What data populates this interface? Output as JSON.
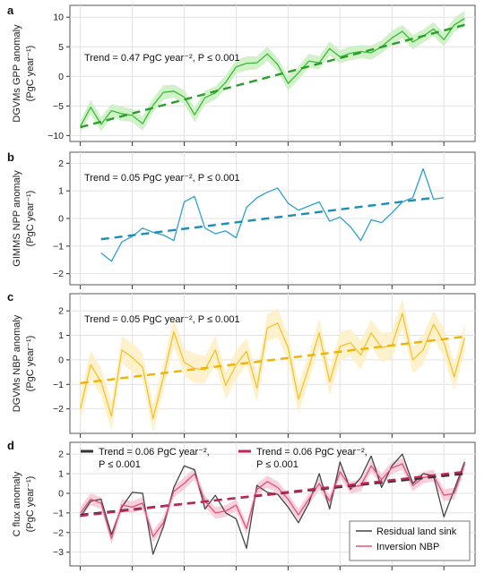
{
  "chart_data": [
    {
      "type": "line",
      "panel": "a",
      "ylabel": [
        "DGVMs GPP anomaly",
        "(PgC year⁻¹)"
      ],
      "ylim": [
        -11,
        12
      ],
      "yticks": [
        -10,
        -5,
        0,
        5,
        10
      ],
      "annotation": "Trend = 0.47 PgC year⁻², P ≤ 0.001",
      "color": "#3cb93c",
      "band_color": "#c9efc0",
      "trend": {
        "x": [
          0,
          37
        ],
        "y": [
          -8.6,
          8.7
        ]
      },
      "x": [
        0,
        1,
        2,
        3,
        4,
        5,
        6,
        7,
        8,
        9,
        10,
        11,
        12,
        13,
        14,
        15,
        16,
        17,
        18,
        19,
        20,
        21,
        22,
        23,
        24,
        25,
        26,
        27,
        28,
        29,
        30,
        31,
        32,
        33,
        34,
        35,
        36,
        37
      ],
      "series": [
        {
          "values": [
            -8.5,
            -5.2,
            -8.1,
            -5.8,
            -6.3,
            -6.6,
            -8.0,
            -4.9,
            -2.7,
            -2.5,
            -3.5,
            -6.5,
            -3.6,
            -2.8,
            -1.0,
            1.6,
            2.2,
            2.3,
            3.8,
            2.0,
            -1.2,
            0.6,
            2.6,
            2.3,
            4.7,
            3.3,
            3.9,
            4.2,
            4.0,
            5.0,
            6.5,
            7.6,
            5.8,
            6.8,
            8.0,
            6.2,
            8.7,
            9.8
          ],
          "band": [
            1.0,
            1.2,
            1.2,
            1.1,
            1.2,
            1.1,
            1.2,
            1.2,
            1.2,
            1.1,
            1.2,
            1.2,
            1.2,
            1.1,
            1.2,
            1.1,
            1.2,
            1.1,
            1.2,
            1.1,
            1.2,
            1.1,
            1.2,
            1.1,
            1.2,
            1.1,
            1.2,
            1.1,
            1.2,
            1.1,
            1.2,
            1.1,
            1.2,
            1.1,
            1.2,
            1.1,
            1.2,
            1.3
          ]
        }
      ]
    },
    {
      "type": "line",
      "panel": "b",
      "ylabel": [
        "GIMMS NPP anomaly",
        "(PgC year⁻¹)"
      ],
      "ylim": [
        -2.4,
        2.4
      ],
      "yticks": [
        -2,
        -1,
        0,
        1,
        2
      ],
      "annotation": "Trend = 0.05 PgC year⁻², P ≤ 0.001",
      "color": "#2ea0cc",
      "trend": {
        "x": [
          2,
          34
        ],
        "y": [
          -0.75,
          0.75
        ]
      },
      "x": [
        2,
        3,
        4,
        5,
        6,
        7,
        8,
        9,
        10,
        11,
        12,
        13,
        14,
        15,
        16,
        17,
        18,
        19,
        20,
        21,
        22,
        23,
        24,
        25,
        26,
        27,
        28,
        29,
        30,
        31,
        32,
        33,
        34,
        35
      ],
      "series": [
        {
          "values": [
            -1.25,
            -1.55,
            -0.85,
            -0.65,
            -0.35,
            -0.5,
            -0.6,
            -0.8,
            0.6,
            0.8,
            -0.35,
            -0.55,
            -0.45,
            -0.7,
            0.4,
            0.75,
            0.95,
            1.1,
            0.55,
            0.3,
            0.45,
            0.6,
            -0.1,
            0.05,
            -0.3,
            -0.8,
            -0.05,
            -0.15,
            0.2,
            0.6,
            0.75,
            1.8,
            0.7,
            0.75
          ]
        }
      ]
    },
    {
      "type": "line",
      "panel": "c",
      "ylabel": [
        "DGVMs NBP anomaly",
        "(PgC year⁻¹)"
      ],
      "ylim": [
        -3,
        2.7
      ],
      "yticks": [
        -2,
        -1,
        0,
        1,
        2
      ],
      "annotation": "Trend = 0.05 PgC year⁻², P ≤ 0.001",
      "color": "#f5c22a",
      "band_color": "#fdf0c4",
      "trend": {
        "x": [
          0,
          37
        ],
        "y": [
          -0.95,
          0.95
        ]
      },
      "x": [
        0,
        1,
        2,
        3,
        4,
        5,
        6,
        7,
        8,
        9,
        10,
        11,
        12,
        13,
        14,
        15,
        16,
        17,
        18,
        19,
        20,
        21,
        22,
        23,
        24,
        25,
        26,
        27,
        28,
        29,
        30,
        31,
        32,
        33,
        34,
        35,
        36,
        37
      ],
      "series": [
        {
          "values": [
            -2.0,
            -0.2,
            -0.9,
            -2.3,
            0.4,
            0.1,
            -0.3,
            -2.4,
            -0.7,
            1.15,
            -0.1,
            -0.35,
            -0.4,
            0.4,
            -1.05,
            -0.2,
            0.35,
            -1.15,
            1.3,
            1.5,
            0.5,
            -1.6,
            -0.3,
            1.1,
            -0.9,
            0.55,
            0.7,
            0.2,
            1.1,
            0.5,
            0.6,
            1.9,
            0.0,
            0.4,
            1.45,
            0.7,
            -0.7,
            0.9
          ],
          "band": [
            0.55,
            0.6,
            0.55,
            0.6,
            0.55,
            0.6,
            0.55,
            0.6,
            0.55,
            0.6,
            0.55,
            0.6,
            0.55,
            0.6,
            0.55,
            0.6,
            0.55,
            0.6,
            0.55,
            0.6,
            0.55,
            0.6,
            0.55,
            0.6,
            0.55,
            0.6,
            0.55,
            0.6,
            0.55,
            0.6,
            0.55,
            0.6,
            0.55,
            0.6,
            0.55,
            0.6,
            0.55,
            0.6
          ]
        }
      ]
    },
    {
      "type": "line",
      "panel": "d",
      "ylabel": [
        "C flux anomaly",
        "(PgC year⁻¹)"
      ],
      "ylim": [
        -3.7,
        2.6
      ],
      "yticks": [
        -3,
        -2,
        -1,
        0,
        1,
        2
      ],
      "annotations": [
        {
          "line1": "Trend = 0.06 PgC year⁻²,",
          "line2": "P ≤ 0.001",
          "color": "#333333"
        },
        {
          "line1": "Trend = 0.06 PgC year⁻²,",
          "line2": "P ≤ 0.001",
          "color": "#c0245a"
        }
      ],
      "trends": [
        {
          "x": [
            0,
            37
          ],
          "y": [
            -1.1,
            1.0
          ],
          "color": "#333333"
        },
        {
          "x": [
            0,
            37
          ],
          "y": [
            -1.15,
            1.1
          ],
          "color": "#c0245a"
        }
      ],
      "x": [
        0,
        1,
        2,
        3,
        4,
        5,
        6,
        7,
        8,
        9,
        10,
        11,
        12,
        13,
        14,
        15,
        16,
        17,
        18,
        19,
        20,
        21,
        22,
        23,
        24,
        25,
        26,
        27,
        28,
        29,
        30,
        31,
        32,
        33,
        34,
        35,
        36,
        37
      ],
      "legend_position": "bottom-right",
      "series": [
        {
          "name": "Residual land sink",
          "color": "#444444",
          "values": [
            -1.2,
            -0.4,
            -0.3,
            -2.1,
            -0.7,
            0.05,
            0.0,
            -3.1,
            -1.7,
            0.3,
            1.4,
            1.2,
            -0.8,
            -0.1,
            -1.0,
            -1.3,
            -2.8,
            0.4,
            0.05,
            -0.05,
            -0.7,
            -1.5,
            -0.5,
            1.0,
            -0.8,
            1.6,
            0.2,
            0.8,
            1.9,
            0.3,
            1.4,
            2.0,
            0.5,
            1.0,
            0.9,
            -1.2,
            0.2,
            1.6
          ]
        },
        {
          "name": "Inversion NBP",
          "color": "#e0527c",
          "band_color": "#f6c8d6",
          "values": [
            -1.0,
            -0.3,
            -0.5,
            -2.3,
            -0.6,
            -0.7,
            -0.5,
            -2.2,
            -1.5,
            0.1,
            0.5,
            1.0,
            -0.4,
            -1.0,
            -0.9,
            -0.6,
            -1.8,
            0.2,
            0.6,
            0.3,
            -0.3,
            -1.1,
            -0.3,
            0.5,
            -0.4,
            1.1,
            0.3,
            0.4,
            1.4,
            0.7,
            1.3,
            1.5,
            0.4,
            0.8,
            0.9,
            -0.1,
            0.0,
            1.5
          ],
          "band": [
            0.3,
            0.3,
            0.3,
            0.3,
            0.3,
            0.3,
            0.3,
            0.3,
            0.3,
            0.3,
            0.3,
            0.3,
            0.3,
            0.3,
            0.3,
            0.3,
            0.3,
            0.3,
            0.3,
            0.3,
            0.3,
            0.3,
            0.3,
            0.3,
            0.3,
            0.3,
            0.3,
            0.3,
            0.3,
            0.3,
            0.3,
            0.3,
            0.3,
            0.3,
            0.3,
            0.3,
            0.3,
            0.3
          ]
        }
      ]
    }
  ]
}
